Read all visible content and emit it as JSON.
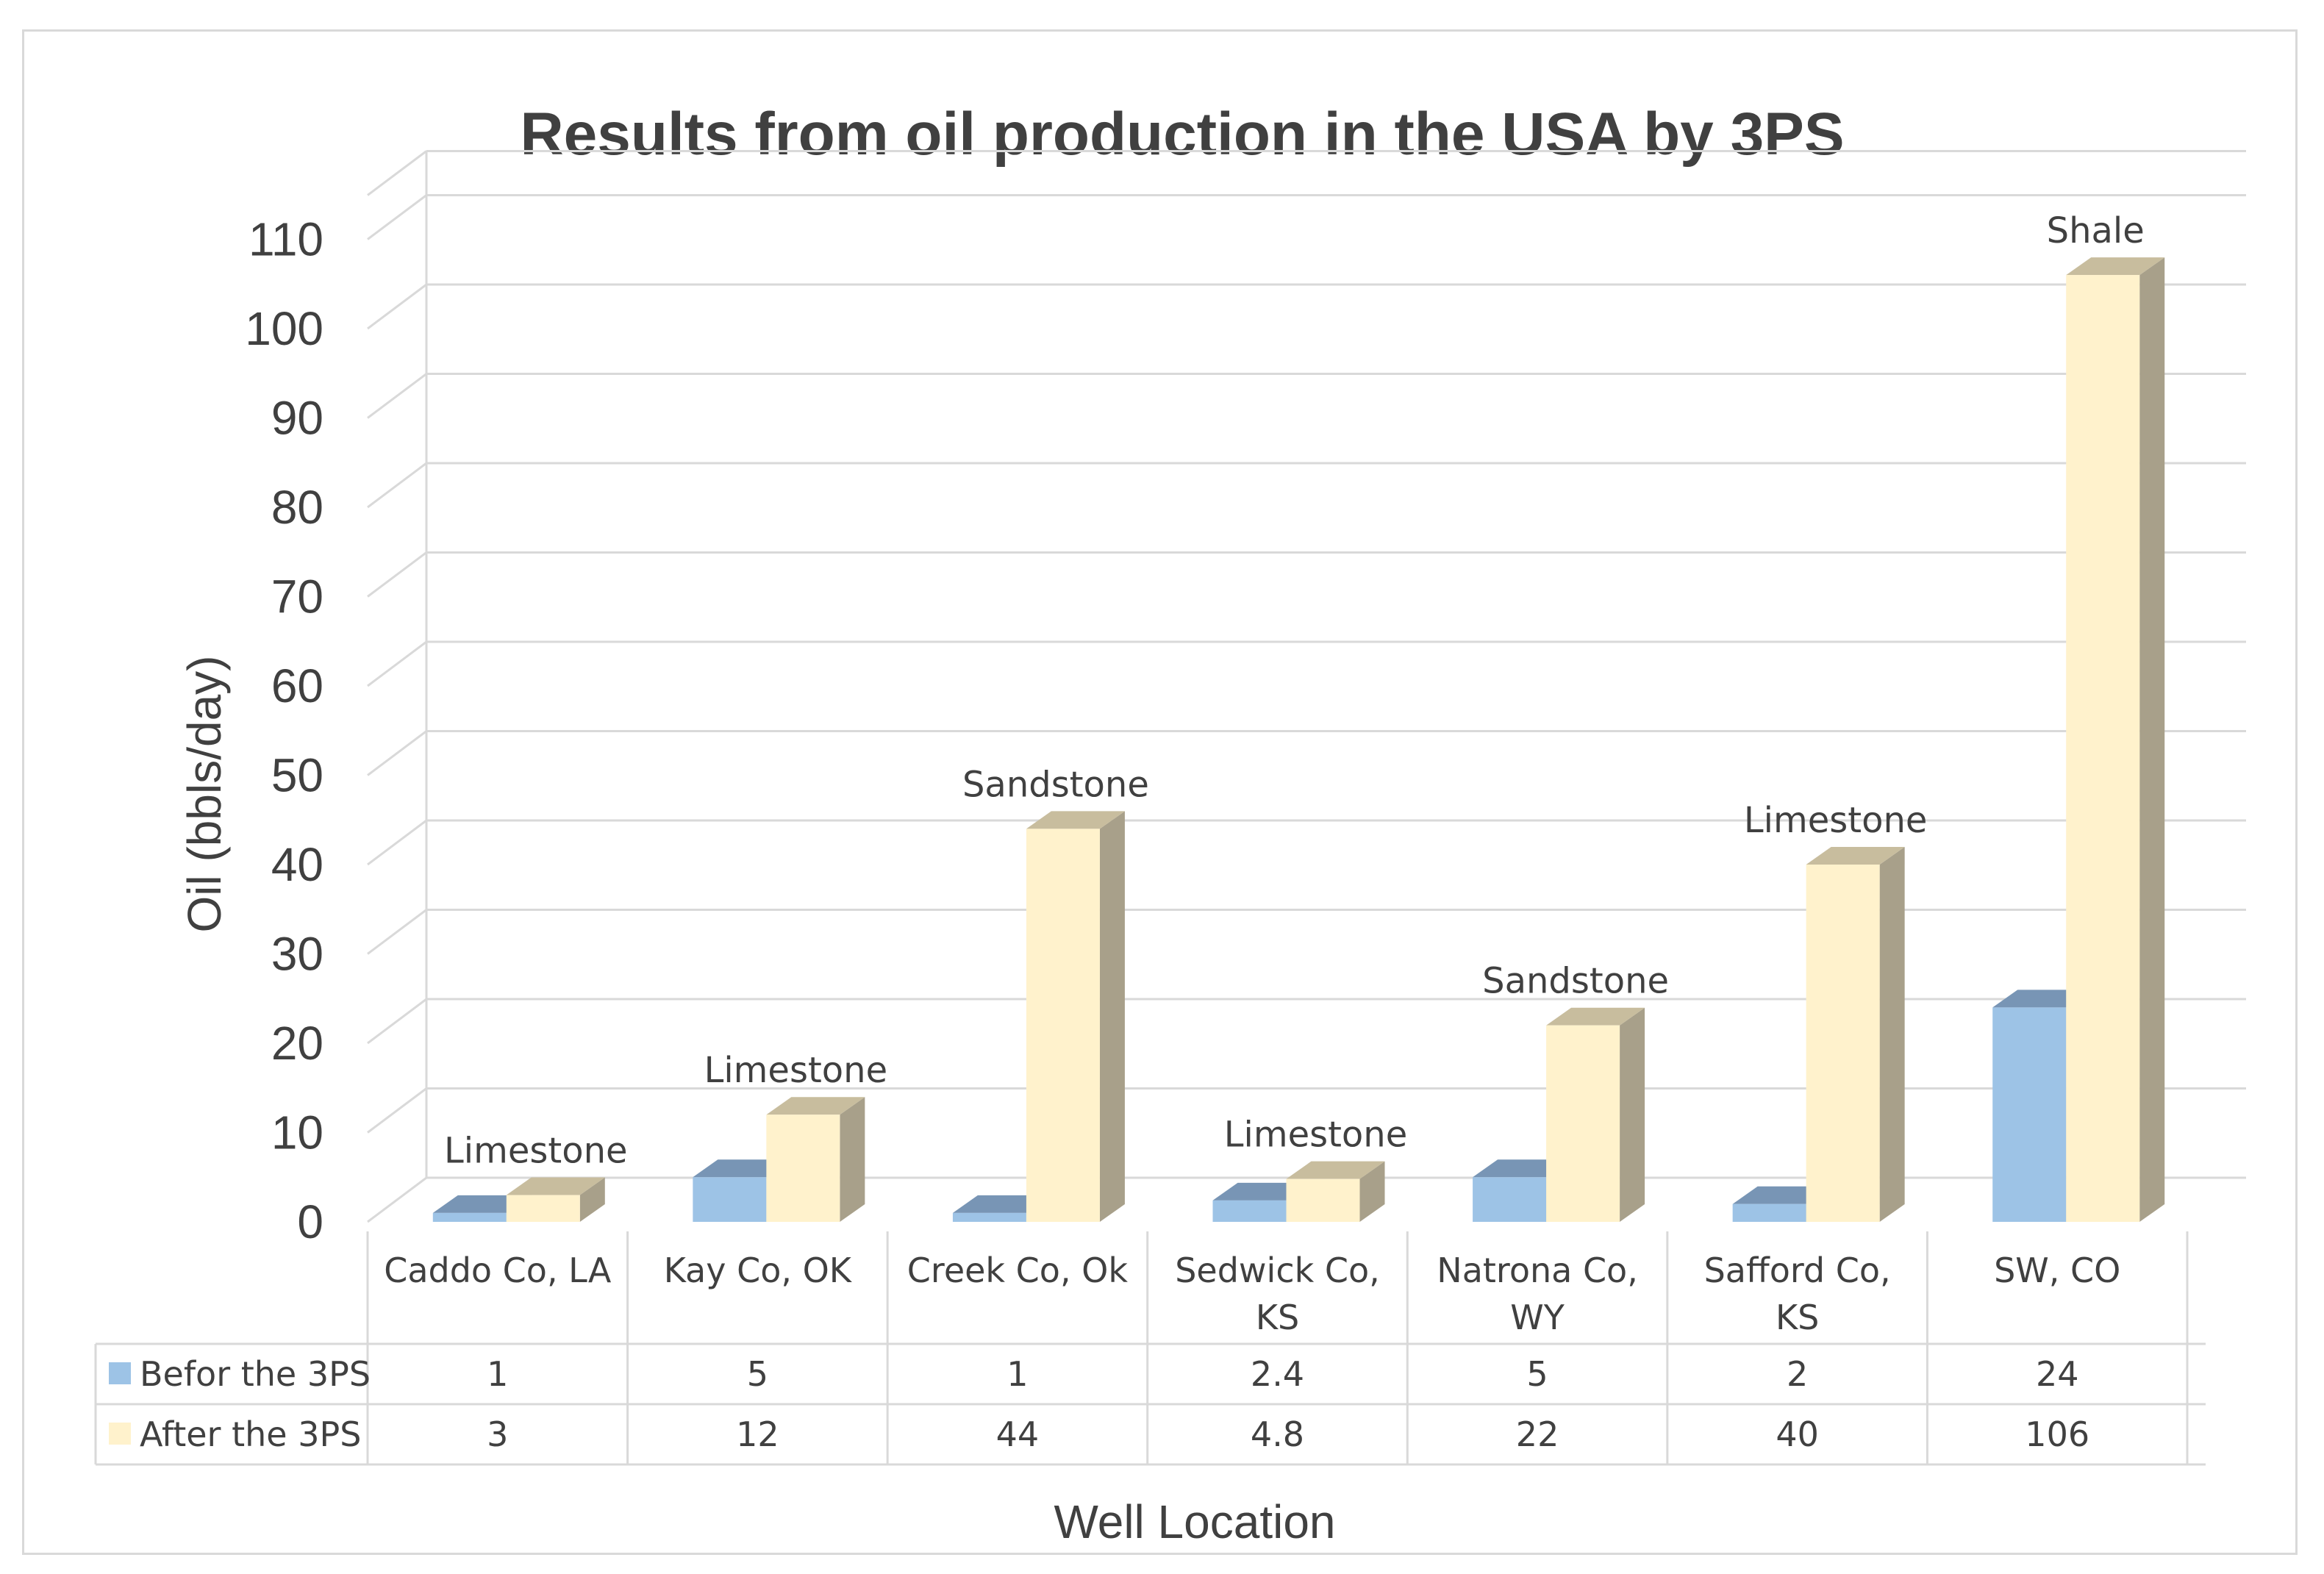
{
  "chart_data": {
    "type": "bar",
    "title": "Results from oil production in the USA by 3PS",
    "ylabel": "Oil (bbls/day)",
    "xlabel": "Well Location",
    "ylim": [
      0,
      110
    ],
    "yticks": [
      "0",
      "10",
      "20",
      "30",
      "40",
      "50",
      "60",
      "70",
      "80",
      "90",
      "100",
      "110"
    ],
    "grid": true,
    "legend": "data-table",
    "categories": [
      [
        "Caddo Co, LA"
      ],
      [
        "Kay Co, OK"
      ],
      [
        "Creek Co, Ok"
      ],
      [
        "Sedwick Co,",
        "KS"
      ],
      [
        "Natrona Co,",
        "WY"
      ],
      [
        "Safford Co,",
        "KS"
      ],
      [
        "SW, CO"
      ]
    ],
    "series": [
      {
        "name": "Befor the 3PS",
        "values": [
          1,
          5,
          1,
          2.4,
          5,
          2,
          24
        ],
        "labels": [
          "1",
          "5",
          "1",
          "2.4",
          "5",
          "2",
          "24"
        ],
        "color": "#9dc3e6"
      },
      {
        "name": "After the 3PS",
        "values": [
          3,
          12,
          44,
          4.8,
          22,
          40,
          106
        ],
        "labels": [
          "3",
          "12",
          "44",
          "4.8",
          "22",
          "40",
          "106"
        ],
        "color": "#fff2cc"
      }
    ],
    "annotations": [
      "Limestone",
      "Limestone",
      "Sandstone",
      "Limestone",
      "Sandstone",
      "Limestone",
      "Shale"
    ]
  }
}
